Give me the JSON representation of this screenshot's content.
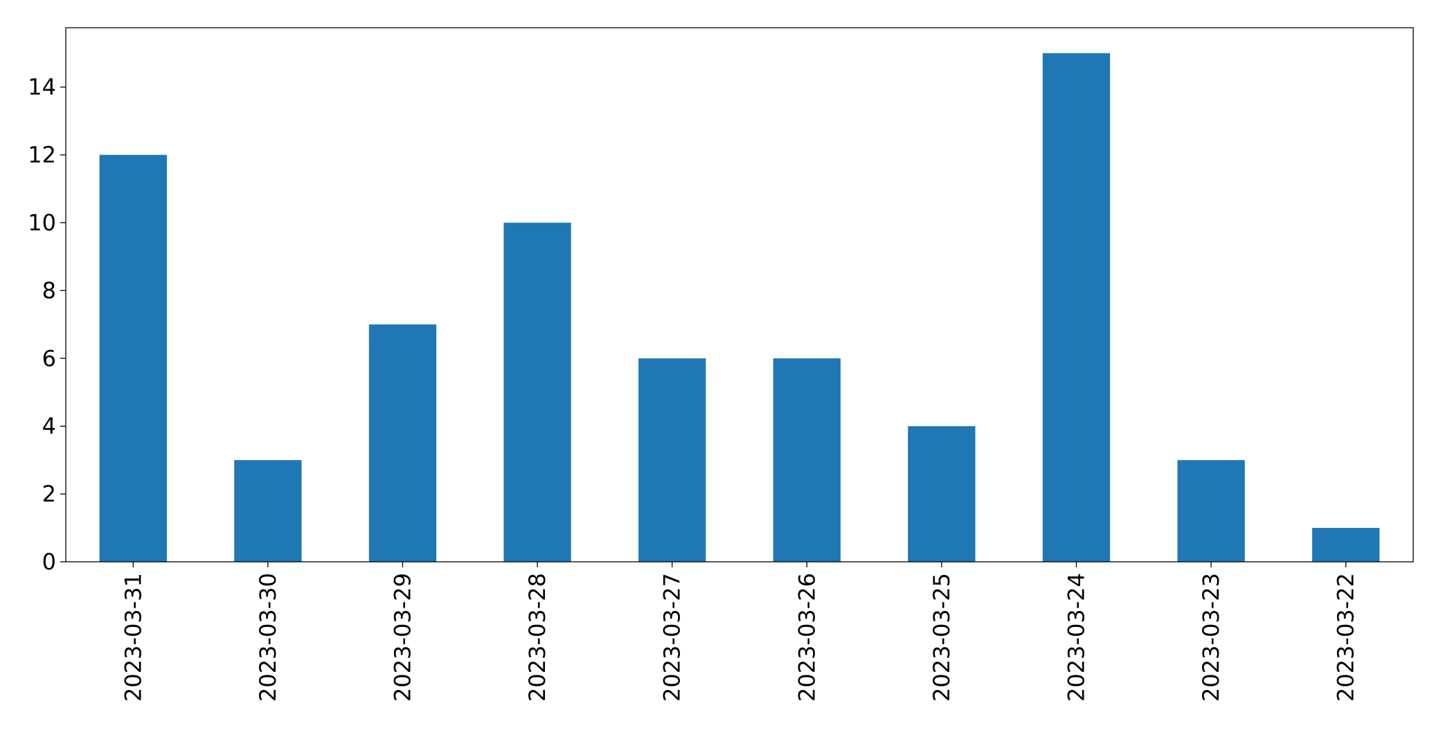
{
  "chart_data": {
    "type": "bar",
    "title": "",
    "xlabel": "",
    "ylabel": "",
    "categories": [
      "2023-03-31",
      "2023-03-30",
      "2023-03-29",
      "2023-03-28",
      "2023-03-27",
      "2023-03-26",
      "2023-03-25",
      "2023-03-24",
      "2023-03-23",
      "2023-03-22"
    ],
    "values": [
      12,
      3,
      7,
      10,
      6,
      6,
      4,
      15,
      3,
      1
    ],
    "ylim": [
      0,
      15.75
    ],
    "yticks": [
      0,
      2,
      4,
      6,
      8,
      10,
      12,
      14
    ],
    "grid": false,
    "legend": "none",
    "colors": {
      "bar": "#1f77b4",
      "axis": "#000000",
      "background": "#ffffff"
    }
  }
}
